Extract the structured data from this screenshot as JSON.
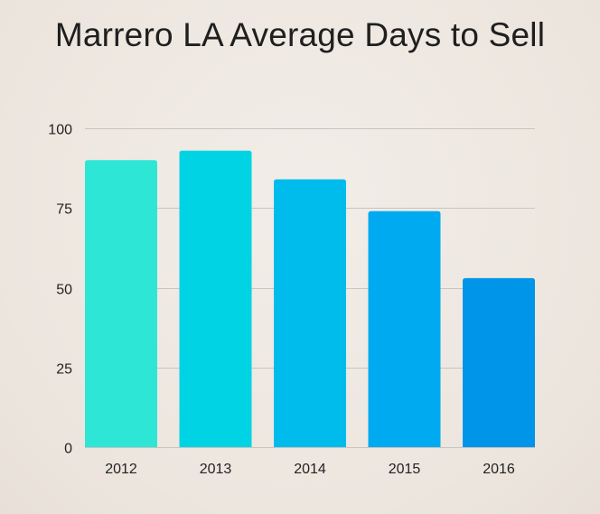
{
  "chart_data": {
    "type": "bar",
    "title": "Marrero LA Average Days to Sell",
    "xlabel": "",
    "ylabel": "",
    "categories": [
      "2012",
      "2013",
      "2014",
      "2015",
      "2016"
    ],
    "values": [
      90,
      93,
      84,
      74,
      53
    ],
    "ylim": [
      0,
      100
    ],
    "yticks": [
      "0",
      "25",
      "50",
      "75",
      "100"
    ],
    "ytick_values": [
      0,
      25,
      50,
      75,
      100
    ],
    "grid": true,
    "legend": "none",
    "bar_colors": [
      "#2ee6d6",
      "#00d4e4",
      "#00bced",
      "#00aaf0",
      "#0095e8"
    ],
    "grid_color": "#c9c4bf"
  }
}
